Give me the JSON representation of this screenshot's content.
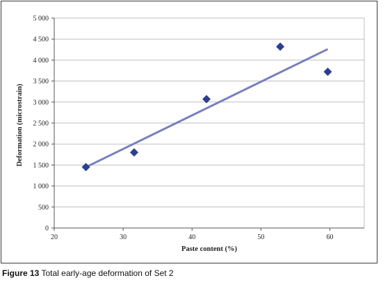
{
  "chart_data": {
    "type": "scatter",
    "xlabel": "Paste content (%)",
    "ylabel": "Deformation (microstrain)",
    "xlim": [
      20,
      65
    ],
    "ylim": [
      0,
      5000
    ],
    "xticks": [
      20,
      30,
      40,
      50,
      60
    ],
    "yticks": [
      0,
      500,
      1000,
      1500,
      2000,
      2500,
      3000,
      3500,
      4000,
      4500,
      5000
    ],
    "xtick_labels": [
      "20",
      "30",
      "40",
      "50",
      "60"
    ],
    "ytick_labels": [
      "0",
      "500",
      "1 000",
      "1 500",
      "2 000",
      "2 500",
      "3 000",
      "3 500",
      "4 000",
      "4 500",
      "5 000"
    ],
    "grid": "horizontal",
    "points": [
      {
        "x": 24.6,
        "y": 1450
      },
      {
        "x": 31.6,
        "y": 1800
      },
      {
        "x": 42.1,
        "y": 3070
      },
      {
        "x": 52.8,
        "y": 4320
      },
      {
        "x": 59.7,
        "y": 3720
      }
    ],
    "trendline": {
      "type": "linear",
      "x": [
        24.6,
        59.7
      ],
      "y": [
        1450,
        4260
      ]
    },
    "marker_color": "#2a3f8f",
    "trendline_color": "#7a7fbf"
  },
  "caption": {
    "label": "Figure 13",
    "text": "Total early-age deformation of Set 2"
  }
}
